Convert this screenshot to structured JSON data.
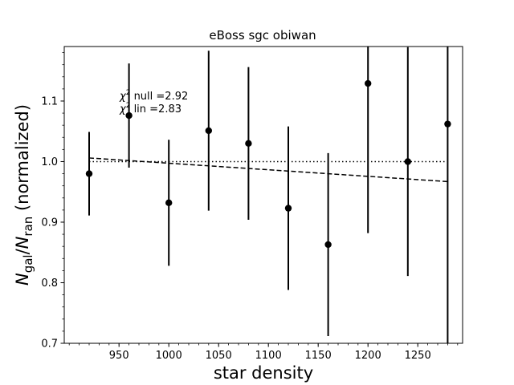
{
  "chart_data": {
    "type": "scatter",
    "title": "eBoss sgc obiwan",
    "xlabel": "star density",
    "ylabel_main": "N",
    "ylabel_sub1": "gal",
    "ylabel_sep": "/",
    "ylabel_main2": "N",
    "ylabel_sub2": "ran",
    "ylabel_tail": " (normalized)",
    "xlim": [
      895,
      1295
    ],
    "ylim": [
      0.7,
      1.19
    ],
    "xticks": [
      950,
      1000,
      1050,
      1100,
      1150,
      1200,
      1250
    ],
    "xticks_minor_step": 10,
    "yticks": [
      0.7,
      0.8,
      0.9,
      1.0,
      1.1
    ],
    "yticks_minor_step": 0.02,
    "ytick_labels": [
      "0.7",
      "0.8",
      "0.9",
      "1.0",
      "1.1"
    ],
    "points": [
      {
        "x": 920,
        "y": 0.98,
        "err": 0.069
      },
      {
        "x": 960,
        "y": 1.076,
        "err": 0.086
      },
      {
        "x": 1000,
        "y": 0.932,
        "err": 0.104
      },
      {
        "x": 1040,
        "y": 1.051,
        "err": 0.132
      },
      {
        "x": 1080,
        "y": 1.03,
        "err": 0.126
      },
      {
        "x": 1120,
        "y": 0.923,
        "err": 0.135
      },
      {
        "x": 1160,
        "y": 0.863,
        "err": 0.151
      },
      {
        "x": 1200,
        "y": 1.129,
        "err": 0.247
      },
      {
        "x": 1240,
        "y": 1.0,
        "err": 0.189
      },
      {
        "x": 1280,
        "y": 1.062,
        "err": 0.39
      }
    ],
    "null_line": {
      "x": [
        920,
        1280
      ],
      "y": [
        1.0,
        1.0
      ],
      "style": "dotted"
    },
    "lin_line": {
      "x": [
        920,
        1280
      ],
      "y": [
        1.006,
        0.967
      ],
      "style": "dashed"
    },
    "annotation": {
      "line1_prefix": "χ",
      "line1_sup": "2",
      "line1_text": " null =2.92",
      "line2_prefix": "χ",
      "line2_sup": "2",
      "line2_text": " lin =2.83",
      "x": 960,
      "y": 1.1
    },
    "grid": false,
    "colors": {
      "points": "#000000",
      "lines": "#000000"
    }
  }
}
